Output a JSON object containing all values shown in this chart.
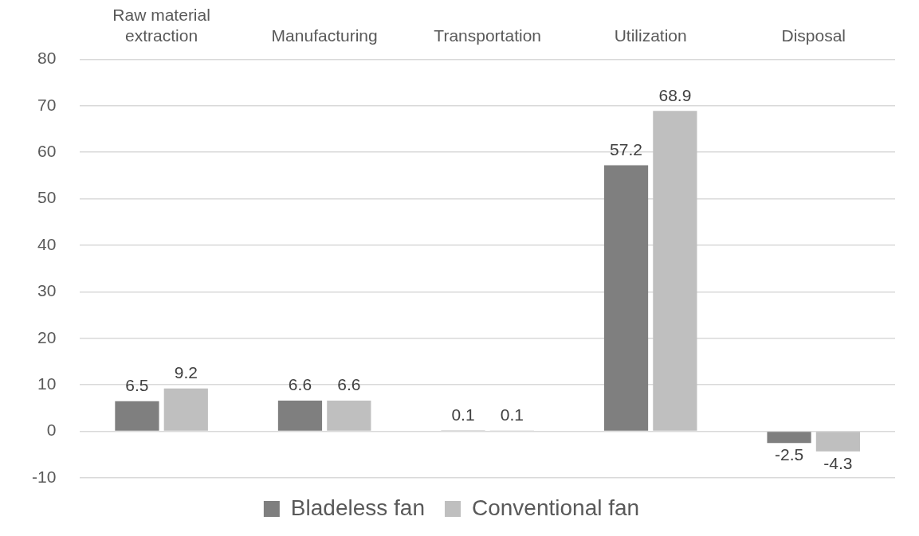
{
  "chart_data": {
    "type": "bar",
    "categories": [
      "Raw material extraction",
      "Manufacturing",
      "Transportation",
      "Utilization",
      "Disposal"
    ],
    "series": [
      {
        "name": "Bladeless fan",
        "color": "#7f7f7f",
        "values": [
          6.5,
          6.6,
          0.1,
          57.2,
          -2.5
        ]
      },
      {
        "name": "Conventional fan",
        "color": "#bfbfbf",
        "values": [
          9.2,
          6.6,
          0.1,
          68.9,
          -4.3
        ]
      }
    ],
    "ylim": [
      -10,
      80
    ],
    "yticks": [
      -10,
      0,
      10,
      20,
      30,
      40,
      50,
      60,
      70,
      80
    ],
    "grid": "y",
    "legend": "bottom",
    "data_labels": true
  }
}
